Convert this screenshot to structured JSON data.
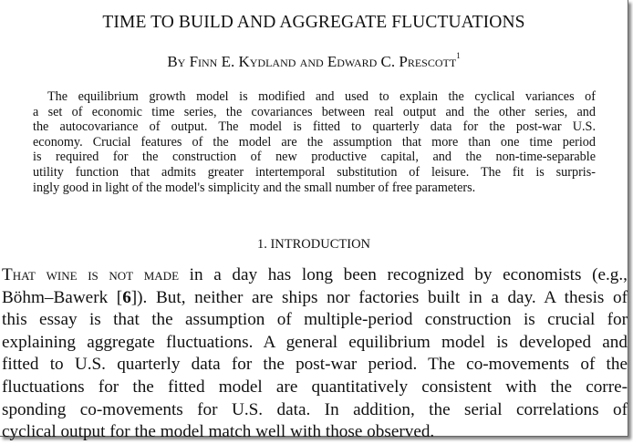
{
  "title": "TIME TO BUILD AND AGGREGATE FLUCTUATIONS",
  "authors": "By Finn E. Kydland and Edward C. Prescott",
  "author_footnote": "1",
  "abstract_lines": [
    "The equilibrium growth model is modified and used to explain the cyclical variances of",
    "a set of economic time series, the covariances between real output and the other series, and",
    "the autocovariance of output. The model is fitted to quarterly data for the post-war U.S.",
    "economy. Crucial features of the model are the assumption that more than one time period",
    "is required for the construction of new productive capital, and the non-time-separable",
    "utility function that admits greater intertemporal substitution of leisure. The fit is surpris-",
    "ingly good in light of the model's simplicity and the small number of free parameters."
  ],
  "section_heading": "1. INTRODUCTION",
  "intro": {
    "lead_in": "That wine is not made",
    "line0_rest": " in a day has long been recognized by economists (e.g.,",
    "line1_pre": "Böhm–Bawerk [",
    "line1_ref": "6",
    "line1_post": "]). But, neither are ships nor factories built in a day. A thesis of",
    "lines": [
      "this essay is that the assumption of multiple-period construction is crucial for",
      "explaining aggregate fluctuations. A general equilibrium model is developed and",
      "fitted to U.S. quarterly data for the post-war period. The co-movements of the",
      "fluctuations for the fitted model are quantitatively consistent with the corre-",
      "sponding co-movements for U.S. data. In addition, the serial correlations of",
      "cyclical output for the model match well with those observed."
    ]
  }
}
